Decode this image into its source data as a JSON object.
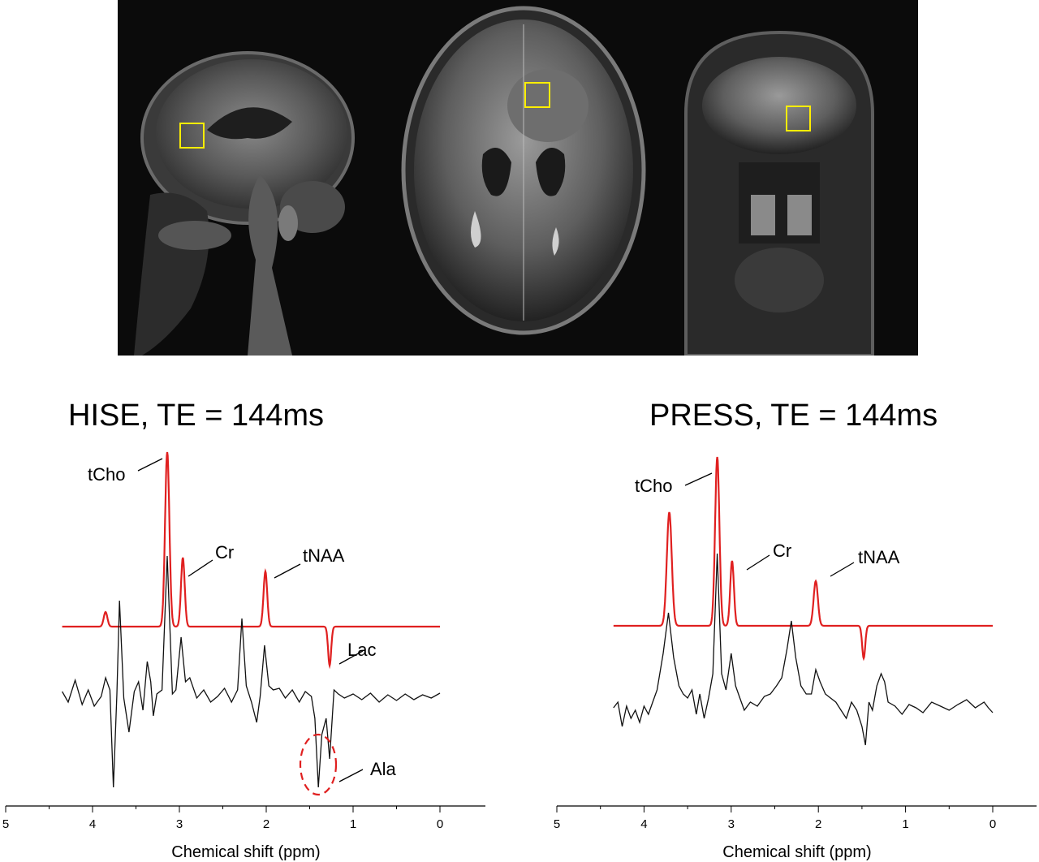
{
  "figure": {
    "mri_views": [
      "sagittal",
      "axial",
      "coronal"
    ],
    "voxel_box_color": "#ffee00",
    "fit_color": "#e02020",
    "data_color": "#111111",
    "annotation_ellipse_color": "#e02020"
  },
  "chart_data": [
    {
      "type": "line",
      "title": "HISE, TE = 144ms",
      "xlabel": "Chemical shift (ppm)",
      "ylabel": "",
      "xlim": [
        5,
        0
      ],
      "x_reversed": true,
      "ticks": [
        "5",
        "4",
        "3",
        "2",
        "1",
        "0"
      ],
      "tick_values": [
        5,
        4,
        3,
        2,
        1,
        0
      ],
      "plotted_range": [
        0,
        4.35
      ],
      "fit_peaks": [
        {
          "ppm": 3.85,
          "amp": 0.18,
          "width": 0.03
        },
        {
          "ppm": 3.14,
          "amp": 2.15,
          "width": 0.035
        },
        {
          "ppm": 2.96,
          "amp": 0.85,
          "width": 0.03
        },
        {
          "ppm": 2.01,
          "amp": 0.68,
          "width": 0.03
        },
        {
          "ppm": 1.27,
          "amp": -0.48,
          "width": 0.025
        }
      ],
      "series": [
        {
          "values": [
            [
              4.35,
              0.08
            ],
            [
              4.28,
              -0.05
            ],
            [
              4.2,
              0.22
            ],
            [
              4.12,
              -0.08
            ],
            [
              4.05,
              0.1
            ],
            [
              3.98,
              -0.1
            ],
            [
              3.9,
              0.02
            ],
            [
              3.85,
              0.25
            ],
            [
              3.8,
              0.1
            ],
            [
              3.76,
              -1.1
            ],
            [
              3.72,
              0.05
            ],
            [
              3.69,
              1.2
            ],
            [
              3.64,
              0.0
            ],
            [
              3.58,
              -0.42
            ],
            [
              3.52,
              0.08
            ],
            [
              3.47,
              0.2
            ],
            [
              3.42,
              -0.15
            ],
            [
              3.37,
              0.45
            ],
            [
              3.33,
              0.2
            ],
            [
              3.3,
              -0.22
            ],
            [
              3.26,
              0.05
            ],
            [
              3.2,
              0.1
            ],
            [
              3.14,
              1.75
            ],
            [
              3.08,
              0.05
            ],
            [
              3.04,
              0.1
            ],
            [
              2.98,
              0.75
            ],
            [
              2.93,
              0.2
            ],
            [
              2.88,
              0.25
            ],
            [
              2.8,
              0.0
            ],
            [
              2.72,
              0.1
            ],
            [
              2.64,
              -0.05
            ],
            [
              2.56,
              0.02
            ],
            [
              2.48,
              0.12
            ],
            [
              2.4,
              -0.05
            ],
            [
              2.33,
              0.1
            ],
            [
              2.28,
              0.98
            ],
            [
              2.23,
              0.15
            ],
            [
              2.17,
              -0.05
            ],
            [
              2.11,
              -0.3
            ],
            [
              2.07,
              0.02
            ],
            [
              2.02,
              0.65
            ],
            [
              1.97,
              0.15
            ],
            [
              1.92,
              0.1
            ],
            [
              1.85,
              0.12
            ],
            [
              1.78,
              0.0
            ],
            [
              1.7,
              0.1
            ],
            [
              1.62,
              -0.05
            ],
            [
              1.55,
              0.08
            ],
            [
              1.48,
              0.02
            ],
            [
              1.44,
              -0.25
            ],
            [
              1.4,
              -1.1
            ],
            [
              1.36,
              -0.45
            ],
            [
              1.31,
              -0.25
            ],
            [
              1.27,
              -0.75
            ],
            [
              1.22,
              0.1
            ],
            [
              1.17,
              0.05
            ],
            [
              1.1,
              0.0
            ],
            [
              1.0,
              0.05
            ],
            [
              0.9,
              -0.02
            ],
            [
              0.8,
              0.06
            ],
            [
              0.7,
              -0.05
            ],
            [
              0.6,
              0.04
            ],
            [
              0.5,
              -0.03
            ],
            [
              0.4,
              0.05
            ],
            [
              0.3,
              -0.02
            ],
            [
              0.2,
              0.04
            ],
            [
              0.1,
              0.0
            ],
            [
              0.0,
              0.06
            ]
          ]
        }
      ],
      "annotations": [
        {
          "text": "tCho",
          "ppm": 3.14
        },
        {
          "text": "Cr",
          "ppm": 2.96
        },
        {
          "text": "tNAA",
          "ppm": 2.01
        },
        {
          "text": "Lac",
          "ppm": 1.27
        },
        {
          "text": "Ala",
          "ppm": 1.4
        }
      ]
    },
    {
      "type": "line",
      "title": "PRESS, TE = 144ms",
      "xlabel": "Chemical shift (ppm)",
      "ylabel": "",
      "xlim": [
        5,
        0
      ],
      "x_reversed": true,
      "ticks": [
        "5",
        "4",
        "3",
        "2",
        "1",
        "0"
      ],
      "tick_values": [
        5,
        4,
        3,
        2,
        1,
        0
      ],
      "plotted_range": [
        0,
        4.35
      ],
      "fit_peaks": [
        {
          "ppm": 3.71,
          "amp": 1.4,
          "width": 0.04
        },
        {
          "ppm": 3.16,
          "amp": 2.08,
          "width": 0.035
        },
        {
          "ppm": 2.99,
          "amp": 0.8,
          "width": 0.03
        },
        {
          "ppm": 2.03,
          "amp": 0.55,
          "width": 0.035
        },
        {
          "ppm": 1.48,
          "amp": -0.4,
          "width": 0.025
        }
      ],
      "series": [
        {
          "values": [
            [
              4.35,
              -0.12
            ],
            [
              4.3,
              -0.05
            ],
            [
              4.25,
              -0.35
            ],
            [
              4.2,
              -0.1
            ],
            [
              4.15,
              -0.25
            ],
            [
              4.1,
              -0.15
            ],
            [
              4.05,
              -0.3
            ],
            [
              4.0,
              -0.1
            ],
            [
              3.95,
              -0.2
            ],
            [
              3.9,
              -0.05
            ],
            [
              3.85,
              0.1
            ],
            [
              3.78,
              0.55
            ],
            [
              3.72,
              1.05
            ],
            [
              3.66,
              0.5
            ],
            [
              3.6,
              0.15
            ],
            [
              3.55,
              0.05
            ],
            [
              3.5,
              0.0
            ],
            [
              3.45,
              0.1
            ],
            [
              3.4,
              -0.2
            ],
            [
              3.36,
              0.05
            ],
            [
              3.31,
              -0.25
            ],
            [
              3.26,
              0.0
            ],
            [
              3.21,
              0.3
            ],
            [
              3.16,
              1.78
            ],
            [
              3.11,
              0.3
            ],
            [
              3.06,
              0.1
            ],
            [
              3.0,
              0.55
            ],
            [
              2.95,
              0.15
            ],
            [
              2.9,
              0.0
            ],
            [
              2.85,
              -0.15
            ],
            [
              2.78,
              -0.05
            ],
            [
              2.7,
              -0.1
            ],
            [
              2.62,
              0.02
            ],
            [
              2.55,
              0.05
            ],
            [
              2.48,
              0.15
            ],
            [
              2.42,
              0.25
            ],
            [
              2.36,
              0.6
            ],
            [
              2.31,
              0.95
            ],
            [
              2.26,
              0.5
            ],
            [
              2.2,
              0.15
            ],
            [
              2.14,
              0.05
            ],
            [
              2.08,
              0.05
            ],
            [
              2.03,
              0.35
            ],
            [
              1.98,
              0.2
            ],
            [
              1.92,
              0.05
            ],
            [
              1.86,
              0.0
            ],
            [
              1.8,
              -0.05
            ],
            [
              1.74,
              -0.15
            ],
            [
              1.68,
              -0.25
            ],
            [
              1.62,
              -0.05
            ],
            [
              1.56,
              -0.15
            ],
            [
              1.5,
              -0.35
            ],
            [
              1.46,
              -0.58
            ],
            [
              1.42,
              -0.05
            ],
            [
              1.38,
              -0.15
            ],
            [
              1.33,
              0.15
            ],
            [
              1.28,
              0.3
            ],
            [
              1.24,
              0.2
            ],
            [
              1.2,
              -0.05
            ],
            [
              1.12,
              -0.1
            ],
            [
              1.04,
              -0.2
            ],
            [
              0.96,
              -0.08
            ],
            [
              0.88,
              -0.12
            ],
            [
              0.8,
              -0.18
            ],
            [
              0.7,
              -0.05
            ],
            [
              0.6,
              -0.1
            ],
            [
              0.5,
              -0.15
            ],
            [
              0.4,
              -0.08
            ],
            [
              0.3,
              -0.02
            ],
            [
              0.2,
              -0.12
            ],
            [
              0.1,
              -0.05
            ],
            [
              0.05,
              -0.12
            ],
            [
              0.0,
              -0.18
            ]
          ]
        }
      ],
      "annotations": [
        {
          "text": "tCho",
          "ppm": 3.16
        },
        {
          "text": "Cr",
          "ppm": 2.99
        },
        {
          "text": "tNAA",
          "ppm": 2.03
        }
      ]
    }
  ]
}
